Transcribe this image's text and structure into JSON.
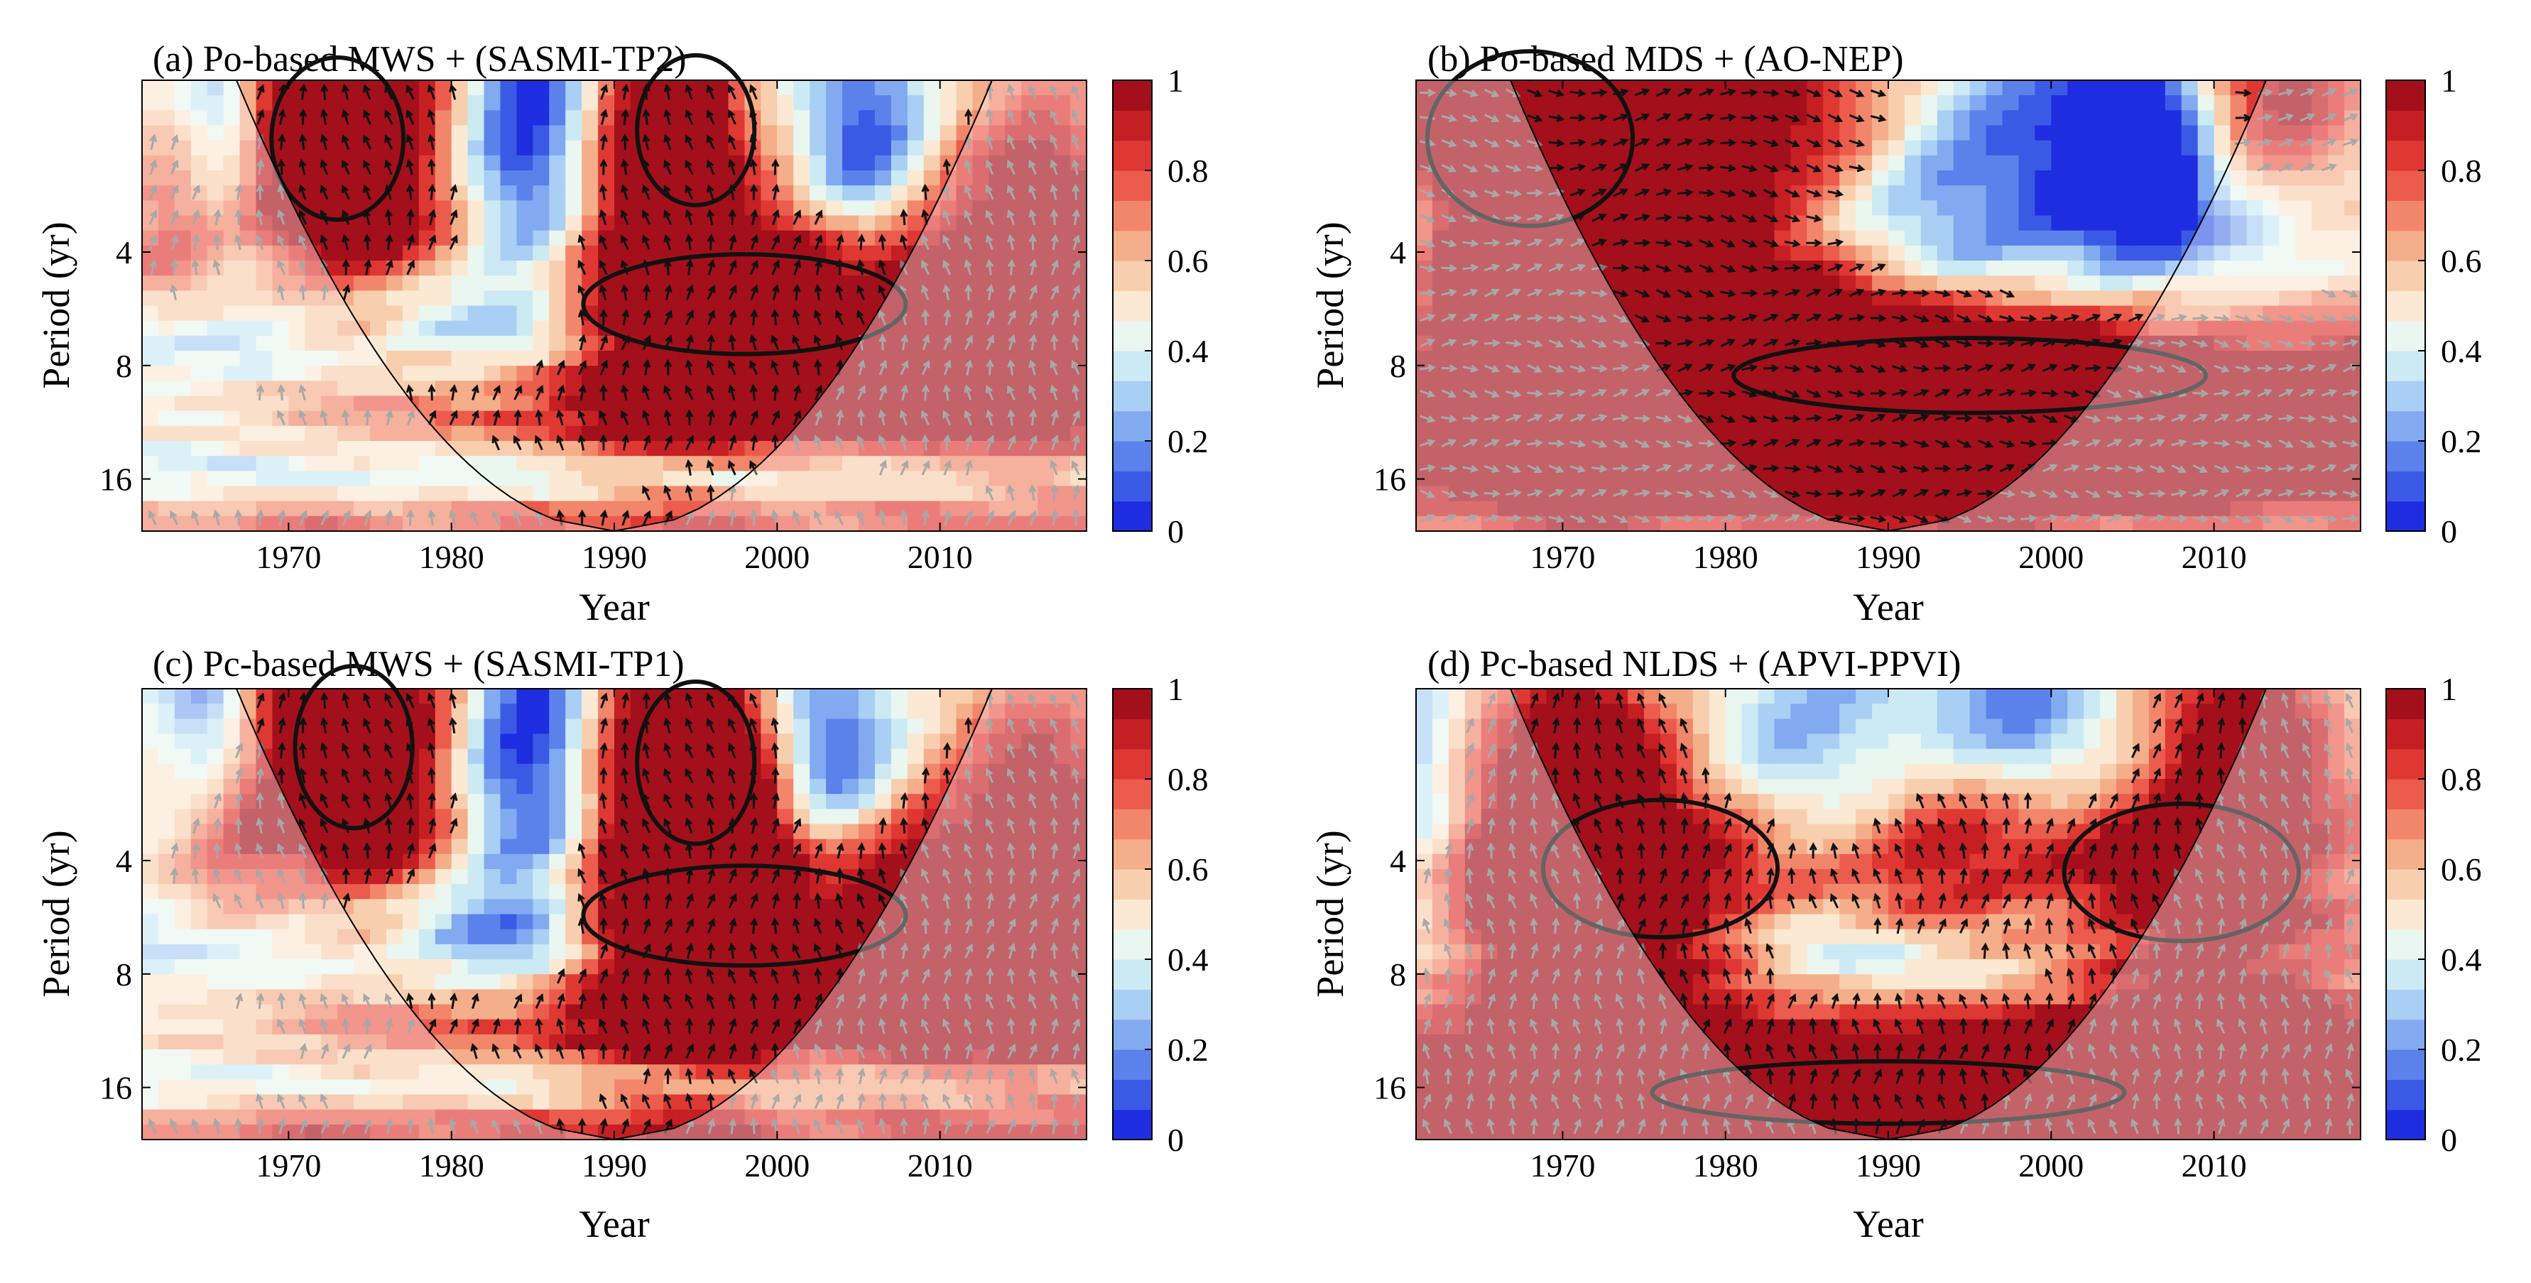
{
  "figure": {
    "background": "#ffffff"
  },
  "colorbar": {
    "ticks": [
      "0",
      "0.2",
      "0.4",
      "0.6",
      "0.8",
      "1"
    ],
    "colors": [
      "#1f2de0",
      "#3a5ae6",
      "#5b82ea",
      "#82aaf0",
      "#a9cff4",
      "#cbeaf4",
      "#eaf6f0",
      "#fbe9d4",
      "#f8cfae",
      "#f5ae8a",
      "#f2866a",
      "#ec5c4d",
      "#df3833",
      "#c51f23",
      "#a30f1a"
    ]
  },
  "chart_data": [
    {
      "id": "a",
      "type": "heatmap",
      "title": "(a) Po-based MWS + (SASMI-TP2)",
      "xlabel": "Year",
      "ylabel": "Period (yr)",
      "xlim": [
        1961,
        2019
      ],
      "ylim": [
        1.4,
        22
      ],
      "xticks": [
        1970,
        1980,
        1990,
        2000,
        2010
      ],
      "yticks": [
        4,
        8,
        16
      ],
      "ytick_labels": [
        "4",
        "8",
        "16"
      ],
      "clim": [
        0,
        1
      ],
      "coi_center": 1990,
      "blobs": [
        {
          "x": 1973,
          "y": 2.0,
          "sx": 4.5,
          "sy": 1.3,
          "a": 0.95
        },
        {
          "x": 1995,
          "y": 1.9,
          "sx": 4,
          "sy": 1.2,
          "a": 0.8
        },
        {
          "x": 1998,
          "y": 5.5,
          "sx": 11,
          "sy": 0.8,
          "a": 0.85
        },
        {
          "x": 2009,
          "y": 6.3,
          "sx": 5,
          "sy": 0.6,
          "a": 0.5
        },
        {
          "x": 2017,
          "y": 4.2,
          "sx": 4,
          "sy": 1.2,
          "a": 0.55
        },
        {
          "x": 1963,
          "y": 3.8,
          "sx": 3,
          "sy": 0.6,
          "a": 0.45
        },
        {
          "x": 1995,
          "y": 11.5,
          "sx": 25,
          "sy": 0.35,
          "a": 0.5
        },
        {
          "x": 1990,
          "y": 20.5,
          "sx": 40,
          "sy": 0.2,
          "a": 0.45
        },
        {
          "x": 1998,
          "y": 3.2,
          "sx": 2.5,
          "sy": 1,
          "a": -0.5
        },
        {
          "x": 2005,
          "y": 2.6,
          "sx": 3,
          "sy": 1.2,
          "a": -0.55
        },
        {
          "x": 1985,
          "y": 2.0,
          "sx": 3,
          "sy": 1.1,
          "a": -0.55
        },
        {
          "x": 1966,
          "y": 1.5,
          "sx": 2,
          "sy": 0.8,
          "a": -0.5
        },
        {
          "x": 1975,
          "y": 6.5,
          "sx": 12,
          "sy": 0.6,
          "a": -0.45
        },
        {
          "x": 1990,
          "y": 15.5,
          "sx": 30,
          "sy": 0.35,
          "a": -0.35
        }
      ]
    },
    {
      "id": "b",
      "type": "heatmap",
      "title": "(b) Po-based MDS + (AO-NEP)",
      "xlabel": "Year",
      "ylabel": "Period (yr)",
      "xlim": [
        1961,
        2019
      ],
      "ylim": [
        1.4,
        22
      ],
      "xticks": [
        1970,
        1980,
        1990,
        2000,
        2010
      ],
      "yticks": [
        4,
        8,
        16
      ],
      "ytick_labels": [
        "4",
        "8",
        "16"
      ],
      "clim": [
        0,
        1
      ],
      "coi_center": 1990,
      "blobs": [
        {
          "x": 1968,
          "y": 2.0,
          "sx": 7,
          "sy": 1.4,
          "a": 0.95
        },
        {
          "x": 1983,
          "y": 1.8,
          "sx": 6,
          "sy": 0.8,
          "a": 0.6
        },
        {
          "x": 2014,
          "y": 1.6,
          "sx": 4,
          "sy": 0.8,
          "a": 0.6
        },
        {
          "x": 1995,
          "y": 8.5,
          "sx": 22,
          "sy": 0.6,
          "a": 0.95
        },
        {
          "x": 1990,
          "y": 15,
          "sx": 40,
          "sy": 0.5,
          "a": 0.55
        },
        {
          "x": 1975,
          "y": 5.5,
          "sx": 10,
          "sy": 0.7,
          "a": 0.35
        },
        {
          "x": 1995,
          "y": 3.0,
          "sx": 9,
          "sy": 0.9,
          "a": -0.45
        },
        {
          "x": 2005,
          "y": 2.0,
          "sx": 3,
          "sy": 0.8,
          "a": -0.55
        },
        {
          "x": 2012,
          "y": 4.0,
          "sx": 5,
          "sy": 1.1,
          "a": -0.3
        },
        {
          "x": 1960,
          "y": 4.2,
          "sx": 3,
          "sy": 0.8,
          "a": -0.35
        }
      ]
    },
    {
      "id": "c",
      "type": "heatmap",
      "title": "(c) Pc-based MWS + (SASMI-TP1)",
      "xlabel": "Year",
      "ylabel": "Period (yr)",
      "xlim": [
        1961,
        2019
      ],
      "ylim": [
        1.4,
        22
      ],
      "xticks": [
        1970,
        1980,
        1990,
        2000,
        2010
      ],
      "yticks": [
        4,
        8,
        16
      ],
      "ytick_labels": [
        "4",
        "8",
        "16"
      ],
      "clim": [
        0,
        1
      ],
      "coi_center": 1990,
      "blobs": [
        {
          "x": 1974,
          "y": 2.0,
          "sx": 4,
          "sy": 1.3,
          "a": 0.95
        },
        {
          "x": 1995,
          "y": 2.2,
          "sx": 4,
          "sy": 1.3,
          "a": 0.8
        },
        {
          "x": 1998,
          "y": 5.6,
          "sx": 11,
          "sy": 0.8,
          "a": 0.85
        },
        {
          "x": 2009,
          "y": 6.4,
          "sx": 5,
          "sy": 0.6,
          "a": 0.5
        },
        {
          "x": 2017,
          "y": 4.0,
          "sx": 4,
          "sy": 1.2,
          "a": 0.55
        },
        {
          "x": 1966,
          "y": 3.8,
          "sx": 3,
          "sy": 0.6,
          "a": 0.5
        },
        {
          "x": 1995,
          "y": 11.5,
          "sx": 25,
          "sy": 0.35,
          "a": 0.55
        },
        {
          "x": 1990,
          "y": 20.5,
          "sx": 40,
          "sy": 0.2,
          "a": 0.5
        },
        {
          "x": 2003,
          "y": 3.0,
          "sx": 3,
          "sy": 1.2,
          "a": -0.6
        },
        {
          "x": 1985,
          "y": 2.2,
          "sx": 3,
          "sy": 1.2,
          "a": -0.55
        },
        {
          "x": 1965,
          "y": 1.5,
          "sx": 2,
          "sy": 0.8,
          "a": -0.45
        },
        {
          "x": 1978,
          "y": 6.5,
          "sx": 12,
          "sy": 0.6,
          "a": -0.5
        },
        {
          "x": 1990,
          "y": 15.5,
          "sx": 30,
          "sy": 0.35,
          "a": -0.3
        }
      ]
    },
    {
      "id": "d",
      "type": "heatmap",
      "title": "(d) Pc-based NLDS + (APVI-PPVI)",
      "xlabel": "Year",
      "ylabel": "Period (yr)",
      "xlim": [
        1961,
        2019
      ],
      "ylim": [
        1.4,
        22
      ],
      "xticks": [
        1970,
        1980,
        1990,
        2000,
        2010
      ],
      "yticks": [
        4,
        8,
        16
      ],
      "ytick_labels": [
        "4",
        "8",
        "16"
      ],
      "clim": [
        0,
        1
      ],
      "coi_center": 1990,
      "blobs": [
        {
          "x": 1976,
          "y": 4.2,
          "sx": 8,
          "sy": 1.1,
          "a": 0.75
        },
        {
          "x": 2008,
          "y": 4.3,
          "sx": 8,
          "sy": 1.1,
          "a": 0.75
        },
        {
          "x": 1993,
          "y": 4.6,
          "sx": 5,
          "sy": 0.8,
          "a": 0.6
        },
        {
          "x": 1968,
          "y": 4.3,
          "sx": 3,
          "sy": 0.7,
          "a": 0.5
        },
        {
          "x": 1990,
          "y": 16.5,
          "sx": 40,
          "sy": 0.5,
          "a": 0.95
        },
        {
          "x": 1972,
          "y": 1.7,
          "sx": 3,
          "sy": 0.6,
          "a": 0.35
        },
        {
          "x": 2012,
          "y": 1.7,
          "sx": 3,
          "sy": 0.6,
          "a": 0.35
        },
        {
          "x": 1992,
          "y": 7.2,
          "sx": 9,
          "sy": 0.45,
          "a": -0.6
        },
        {
          "x": 1985,
          "y": 2.2,
          "sx": 7,
          "sy": 0.8,
          "a": -0.5
        },
        {
          "x": 2000,
          "y": 2.0,
          "sx": 5,
          "sy": 0.8,
          "a": -0.45
        },
        {
          "x": 1961,
          "y": 2.0,
          "sx": 2,
          "sy": 0.8,
          "a": -0.3
        }
      ]
    }
  ]
}
